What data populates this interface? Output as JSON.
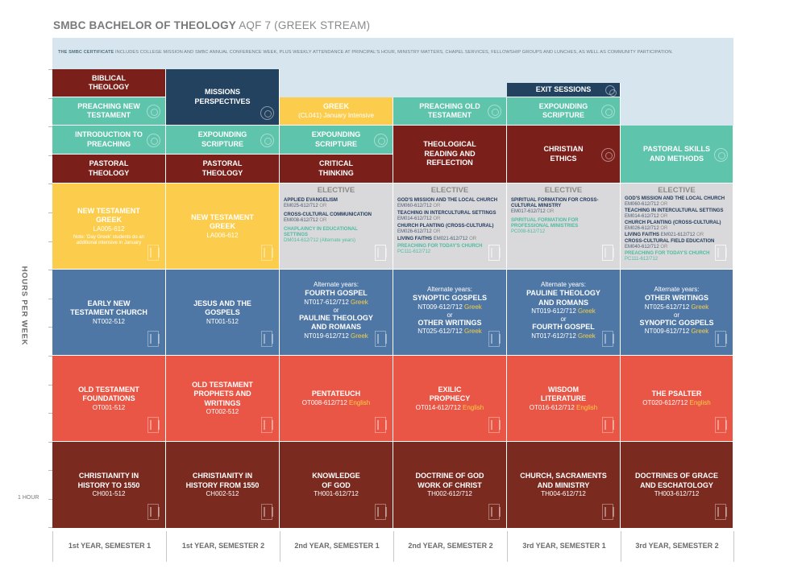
{
  "header": {
    "title_bold": "SMBC BACHELOR OF THEOLOGY",
    "title_rest": "AQF 7 (GREEK STREAM)"
  },
  "certificate": {
    "lead": "THE SMBC CERTIFICATE",
    "text": "INCLUDES COLLEGE MISSION AND SMBC ANNUAL CONFERENCE WEEK, PLUS WEEKLY ATTENDANCE AT PRINCIPAL'S HOUR, MINISTRY MATTERS, CHAPEL SERVICES, FELLOWSHIP GROUPS AND LUNCHES, AS WELL AS COMMUNITY PARTICIPATION."
  },
  "axis": {
    "y_label": "HOURS PER WEEK",
    "one_hour": "1 HOUR"
  },
  "semesters": [
    "1st YEAR, SEMESTER 1",
    "1st YEAR, SEMESTER 2",
    "2nd YEAR, SEMESTER 1",
    "2nd YEAR, SEMESTER 2",
    "3rd YEAR, SEMESTER 1",
    "3rd YEAR, SEMESTER 2"
  ],
  "cells": {
    "biblical_theology": "BIBLICAL THEOLOGY",
    "preaching_nt": "PREACHING NEW TESTAMENT",
    "intro_preaching": "INTRODUCTION TO PREACHING",
    "pastoral_theology_1": "PASTORAL THEOLOGY",
    "missions_perspectives": "MISSIONS PERSPECTIVES",
    "expounding_1": "EXPOUNDING SCRIPTURE",
    "pastoral_theology_2": "PASTORAL THEOLOGY",
    "greek_title": "GREEK",
    "greek_sub": "(CL041) January Intensive",
    "expounding_2": "EXPOUNDING SCRIPTURE",
    "critical_thinking": "CRITICAL THINKING",
    "preaching_ot": "PREACHING OLD TESTAMENT",
    "theological_reading": "THEOLOGICAL READING AND REFLECTION",
    "exit_sessions": "EXIT SESSIONS",
    "expounding_3": "EXPOUNDING SCRIPTURE",
    "christian_ethics": "CHRISTIAN ETHICS",
    "pastoral_skills": "PASTORAL SKILLS AND METHODS"
  },
  "greek_row": {
    "s1_title": "NEW TESTAMENT GREEK",
    "s1_code": "LA005-612",
    "s1_note": "Note: 'Day Greek' students do an additional intensive in January",
    "s2_title": "NEW TESTAMENT GREEK",
    "s2_code": "LA006-612"
  },
  "electives": {
    "heading": "ELECTIVE",
    "or": "OR",
    "e1": {
      "a_title": "APPLIED EVANGELISM",
      "a_code": "EM025-612/712",
      "b_title": "CROSS-CULTURAL COMMUNICATION",
      "b_code": "EM008-612/712",
      "c_title": "CHAPLAINCY IN EDUCATIONAL SETTINGS",
      "c_code": "DM014-612/712 (Alternate years)"
    },
    "e2": {
      "a_title": "GOD'S MISSION AND THE LOCAL CHURCH",
      "a_code": "EM060-612/712",
      "b_title": "TEACHING IN INTERCULTURAL SETTINGS",
      "b_code": "EM014-612/712",
      "c_title": "CHURCH PLANTING (CROSS-CULTURAL)",
      "c_code": "EM026-612/712",
      "d_title": "LIVING FAITHS",
      "d_code": "EM021-612/712",
      "e_title": "PREACHING FOR TODAY'S CHURCH",
      "e_code": "PC111-612/712"
    },
    "e3": {
      "a_title": "SPIRITUAL FORMATION FOR CROSS-CULTURAL MINISTRY",
      "a_code": "EM017-612/712",
      "b_title": "SPIRITUAL FORMATION FOR PROFESSIONAL MINISTRIES",
      "b_code": "PC008-612/712"
    },
    "e4": {
      "a_title": "GOD'S MISSION AND THE LOCAL CHURCH",
      "a_code": "EM060-612/712",
      "b_title": "TEACHING IN INTERCULTURAL SETTINGS",
      "b_code": "EM014-612/712",
      "c_title": "CHURCH PLANTING (CROSS-CULTURAL)",
      "c_code": "EM026-612/712",
      "d_title": "LIVING FAITHS",
      "d_code": "EM021-612/712",
      "e_title": "CROSS-CULTURAL FIELD EDUCATION",
      "e_code": "EM040-612/712",
      "f_title": "PREACHING FOR TODAY'S CHURCH",
      "f_code": "PC111-612/712"
    }
  },
  "nt_row": {
    "s1_title": "EARLY NEW TESTAMENT CHURCH",
    "s1_code": "NT002-512",
    "s2_title": "JESUS AND THE GOSPELS",
    "s2_code": "NT001-512",
    "alt": "Alternate years:",
    "or": "or",
    "greek": "Greek",
    "s3_a": "FOURTH GOSPEL",
    "s3_a_code": "NT017-612/712",
    "s3_b": "PAULINE THEOLOGY AND ROMANS",
    "s3_b_code": "NT019-612/712",
    "s4_a": "SYNOPTIC GOSPELS",
    "s4_a_code": "NT009-612/712",
    "s4_b": "OTHER WRITINGS",
    "s4_b_code": "NT025-612/712",
    "s5_a": "PAULINE THEOLOGY AND ROMANS",
    "s5_a_code": "NT019-612/712",
    "s5_b": "FOURTH GOSPEL",
    "s5_b_code": "NT017-612/712",
    "s6_a": "OTHER WRITINGS",
    "s6_a_code": "NT025-612/712",
    "s6_b": "SYNOPTIC GOSPELS",
    "s6_b_code": "NT009-612/712"
  },
  "ot_row": {
    "english": "English",
    "s1_title": "OLD TESTAMENT FOUNDATIONS",
    "s1_code": "OT001-512",
    "s2_title": "OLD TESTAMENT PROPHETS AND WRITINGS",
    "s2_code": "OT002-512",
    "s3_title": "PENTATEUCH",
    "s3_code": "OT008-612/712",
    "s4_title": "EXILIC PROPHECY",
    "s4_code": "OT014-612/712",
    "s5_title": "WISDOM LITERATURE",
    "s5_code": "OT016-612/712",
    "s6_title": "THE PSALTER",
    "s6_code": "OT020-612/712"
  },
  "th_row": {
    "s1_title": "CHRISTIANITY IN HISTORY TO 1550",
    "s1_code": "CH001-512",
    "s2_title": "CHRISTIANITY IN HISTORY FROM 1550",
    "s2_code": "CH002-512",
    "s3_title": "KNOWLEDGE OF GOD",
    "s3_code": "TH001-612/712",
    "s4_title": "DOCTRINE OF GOD WORK OF CHRIST",
    "s4_code": "TH002-612/712",
    "s5_title": "CHURCH, SACRAMENTS AND MINISTRY",
    "s5_code": "TH004-612/712",
    "s6_title": "DOCTRINES OF GRACE AND ESCHATOLOGY",
    "s6_code": "TH003-612/712"
  },
  "colors": {
    "maroon": "#7a1f1a",
    "teal": "#5ec4ab",
    "navy": "#23425f",
    "yellow": "#fccd4d",
    "blue": "#4f77a6",
    "red": "#ea5646",
    "brick": "#7b2a20",
    "gray": "#d9d9db",
    "certificate_bg": "#d7e6ee"
  }
}
